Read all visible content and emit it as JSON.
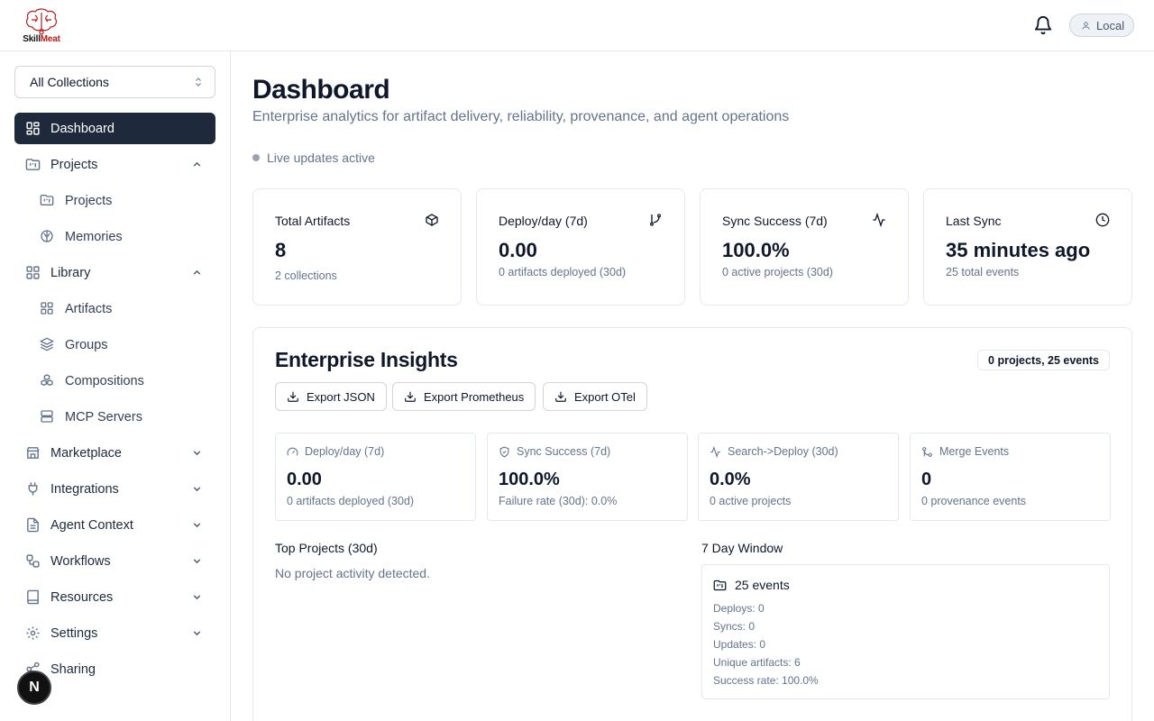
{
  "header": {
    "logo_text_a": "Skill",
    "logo_text_b": "Meat",
    "user_label": "Local"
  },
  "sidebar": {
    "collection": "All Collections",
    "items": {
      "dashboard": "Dashboard",
      "projects": "Projects",
      "projects_sub": "Projects",
      "memories": "Memories",
      "library": "Library",
      "artifacts": "Artifacts",
      "groups": "Groups",
      "compositions": "Compositions",
      "mcp_servers": "MCP Servers",
      "marketplace": "Marketplace",
      "integrations": "Integrations",
      "agent_context": "Agent Context",
      "workflows": "Workflows",
      "resources": "Resources",
      "settings": "Settings",
      "sharing": "Sharing"
    },
    "badge": "N"
  },
  "main": {
    "title": "Dashboard",
    "subtitle": "Enterprise analytics for artifact delivery, reliability, provenance, and agent operations",
    "live": "Live updates active",
    "stats": [
      {
        "title": "Total Artifacts",
        "value": "8",
        "sub": "2 collections",
        "icon": "package-icon"
      },
      {
        "title": "Deploy/day (7d)",
        "value": "0.00",
        "sub": "0 artifacts deployed (30d)",
        "icon": "git-branch-icon"
      },
      {
        "title": "Sync Success (7d)",
        "value": "100.0%",
        "sub": "0 active projects (30d)",
        "icon": "activity-icon"
      },
      {
        "title": "Last Sync",
        "value": "35 minutes ago",
        "sub": "25 total events",
        "icon": "clock-icon"
      }
    ],
    "insights": {
      "title": "Enterprise Insights",
      "badge": "0 projects, 25 events",
      "buttons": [
        "Export JSON",
        "Export Prometheus",
        "Export OTel"
      ],
      "mini": [
        {
          "title": "Deploy/day (7d)",
          "value": "0.00",
          "sub": "0 artifacts deployed (30d)"
        },
        {
          "title": "Sync Success (7d)",
          "value": "100.0%",
          "sub": "Failure rate (30d): 0.0%"
        },
        {
          "title": "Search->Deploy (30d)",
          "value": "0.0%",
          "sub": "0 active projects"
        },
        {
          "title": "Merge Events",
          "value": "0",
          "sub": "0 provenance events"
        }
      ],
      "top_projects_title": "Top Projects (30d)",
      "top_projects_empty": "No project activity detected.",
      "window_title": "7 Day Window",
      "window_events": "25 events",
      "window_lines": [
        "Deploys: 0",
        "Syncs: 0",
        "Updates: 0",
        "Unique artifacts: 6",
        "Success rate: 100.0%"
      ]
    }
  }
}
